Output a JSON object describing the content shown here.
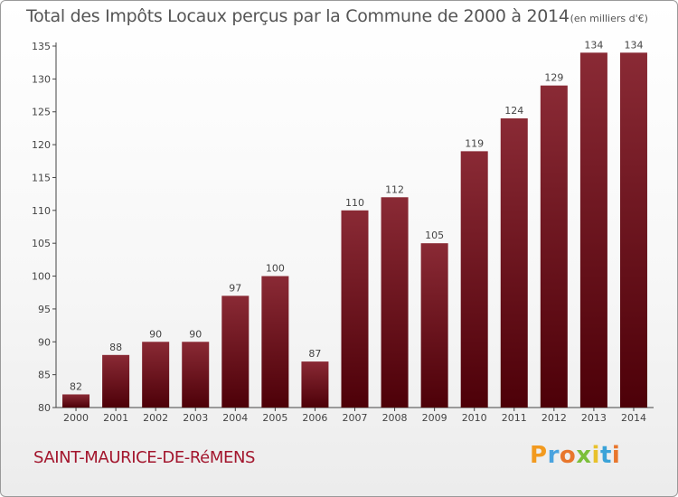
{
  "chart_data": {
    "type": "bar",
    "title": "Total des Impôts Locaux perçus par la Commune de 2000 à 2014",
    "unit": "(en milliers d'€)",
    "categories": [
      "2000",
      "2001",
      "2002",
      "2003",
      "2004",
      "2005",
      "2006",
      "2007",
      "2008",
      "2009",
      "2010",
      "2011",
      "2012",
      "2013",
      "2014"
    ],
    "values": [
      82,
      88,
      90,
      90,
      97,
      100,
      87,
      110,
      112,
      105,
      119,
      124,
      129,
      134,
      134
    ],
    "ylim": [
      80,
      135
    ],
    "yticks": [
      80,
      85,
      90,
      95,
      100,
      105,
      110,
      115,
      120,
      125,
      130,
      135
    ],
    "xlabel": "",
    "ylabel": "",
    "grid": false,
    "bar_color": "#6e0f1a"
  },
  "commune": "SAINT-MAURICE-DE-RéMENS",
  "brand": {
    "letters": [
      "P",
      "r",
      "o",
      "x",
      "i",
      "t",
      "i"
    ],
    "colors": [
      "#f29a1f",
      "#4aa3df",
      "#e8762c",
      "#7cbf3a",
      "#e8c12c",
      "#3ba3d8",
      "#e8762c"
    ]
  }
}
